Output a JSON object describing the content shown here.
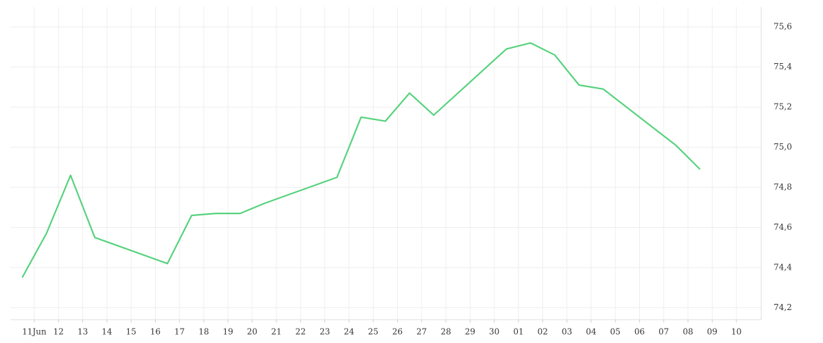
{
  "chart_data": {
    "type": "line",
    "x": [
      "11Jun",
      "12",
      "13",
      "14",
      "17",
      "18",
      "19",
      "20",
      "21",
      "24",
      "25",
      "26",
      "27",
      "28",
      "01",
      "02",
      "03",
      "04",
      "05",
      "08",
      "09"
    ],
    "series": [
      {
        "color": "#55d27c",
        "values": [
          74.35,
          74.57,
          74.86,
          74.55,
          74.42,
          74.66,
          74.67,
          74.67,
          74.72,
          74.85,
          75.15,
          75.13,
          75.27,
          75.16,
          75.49,
          75.52,
          75.46,
          75.31,
          75.29,
          75.01,
          74.89
        ]
      }
    ],
    "xticks": [
      "11Jun",
      "12",
      "13",
      "14",
      "15",
      "16",
      "17",
      "18",
      "19",
      "20",
      "21",
      "22",
      "23",
      "24",
      "25",
      "26",
      "27",
      "28",
      "29",
      "30",
      "01",
      "02",
      "03",
      "04",
      "05",
      "06",
      "07",
      "08",
      "09",
      "10"
    ],
    "ylim": [
      74.14,
      75.7
    ],
    "yticks": [
      {
        "value": 74.2,
        "label": "74,2"
      },
      {
        "value": 74.4,
        "label": "74,4"
      },
      {
        "value": 74.6,
        "label": "74,6"
      },
      {
        "value": 74.8,
        "label": "74,8"
      },
      {
        "value": 75.0,
        "label": "75,0"
      },
      {
        "value": 75.2,
        "label": "75,2"
      },
      {
        "value": 75.4,
        "label": "75,4"
      },
      {
        "value": 75.6,
        "label": "75,6"
      }
    ],
    "grid": true
  }
}
